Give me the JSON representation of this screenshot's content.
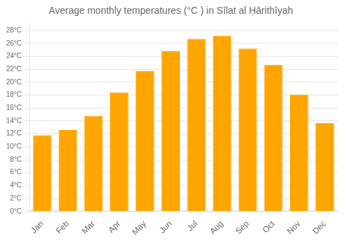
{
  "chart_data": {
    "type": "bar",
    "title": "Average monthly temperatures (°C ) in Sīlat al Ḥārithīyah",
    "categories": [
      "Jan",
      "Feb",
      "Mar",
      "Apr",
      "May",
      "Jun",
      "Jul",
      "Aug",
      "Sep",
      "Oct",
      "Nov",
      "Dec"
    ],
    "values": [
      11.8,
      12.6,
      14.8,
      18.4,
      21.7,
      24.8,
      26.7,
      27.2,
      25.2,
      22.7,
      18.1,
      13.7
    ],
    "color": "#FFA500",
    "ylim": [
      0,
      29
    ],
    "yticks": [
      {
        "value": 0,
        "label": "0°C"
      },
      {
        "value": 2,
        "label": "2°C"
      },
      {
        "value": 4,
        "label": "4°C"
      },
      {
        "value": 6,
        "label": "6°C"
      },
      {
        "value": 8,
        "label": "8°C"
      },
      {
        "value": 10,
        "label": "10°C"
      },
      {
        "value": 12,
        "label": "12°C"
      },
      {
        "value": 14,
        "label": "14°C"
      },
      {
        "value": 16,
        "label": "16°C"
      },
      {
        "value": 18,
        "label": "18°C"
      },
      {
        "value": 20,
        "label": "20°C"
      },
      {
        "value": 22,
        "label": "22°C"
      },
      {
        "value": 24,
        "label": "24°C"
      },
      {
        "value": 26,
        "label": "26°C"
      },
      {
        "value": 28,
        "label": "28°C"
      }
    ],
    "grid": true
  }
}
